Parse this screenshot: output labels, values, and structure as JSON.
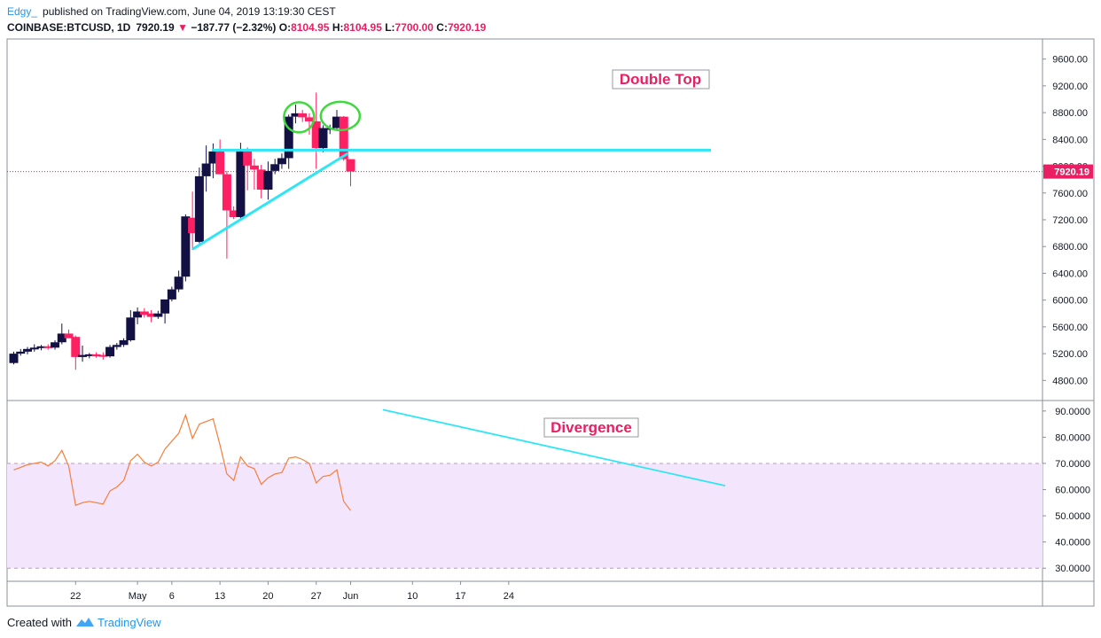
{
  "header": {
    "author": "Edgy_",
    "published_text": "published on TradingView.com, June 04, 2019 13:19:30 CEST",
    "symbol": "COINBASE:BTCUSD, 1D",
    "last": "7920.19",
    "arrow": "▼",
    "change": "−187.77 (−2.32%)",
    "open_label": "O:",
    "open": "8104.95",
    "high_label": "H:",
    "high": "8104.95",
    "low_label": "L:",
    "low": "7700.00",
    "close_label": "C:",
    "close": "7920.19"
  },
  "footer": {
    "created_with": "Created with",
    "brand": "TradingView"
  },
  "colors": {
    "up": "#131144",
    "down": "#ff1f63",
    "trend": "#2ee6f5",
    "rsi": "#f57f3c",
    "rsi_band": "#f3e5fc",
    "circle": "#3fd93f",
    "annotation": "#e91e63",
    "last_price": "#e91e63"
  },
  "chart_data": [
    {
      "type": "candlestick",
      "symbol": "COINBASE:BTCUSD",
      "timeframe": "1D",
      "ylim": [
        4500,
        9900
      ],
      "y_ticks": [
        "9600.00",
        "9200.00",
        "8800.00",
        "8400.00",
        "8000.00",
        "7600.00",
        "7200.00",
        "6800.00",
        "6400.00",
        "6000.00",
        "5600.00",
        "5200.00",
        "4800.00"
      ],
      "x_ticks": [
        {
          "label": "22",
          "date": "2019-04-22"
        },
        {
          "label": "May",
          "date": "2019-05-01"
        },
        {
          "label": "6",
          "date": "2019-05-06"
        },
        {
          "label": "13",
          "date": "2019-05-13"
        },
        {
          "label": "20",
          "date": "2019-05-20"
        },
        {
          "label": "27",
          "date": "2019-05-27"
        },
        {
          "label": "Jun",
          "date": "2019-06-01"
        },
        {
          "label": "10",
          "date": "2019-06-10"
        },
        {
          "label": "17",
          "date": "2019-06-17"
        },
        {
          "label": "24",
          "date": "2019-06-24"
        }
      ],
      "last_price": "7920.19",
      "candles": [
        {
          "date": "2019-04-13",
          "o": 5060,
          "h": 5230,
          "l": 5040,
          "c": 5200
        },
        {
          "date": "2019-04-14",
          "o": 5200,
          "h": 5270,
          "l": 5170,
          "c": 5230
        },
        {
          "date": "2019-04-15",
          "o": 5230,
          "h": 5300,
          "l": 5190,
          "c": 5270
        },
        {
          "date": "2019-04-16",
          "o": 5270,
          "h": 5340,
          "l": 5230,
          "c": 5290
        },
        {
          "date": "2019-04-17",
          "o": 5290,
          "h": 5330,
          "l": 5250,
          "c": 5310
        },
        {
          "date": "2019-04-18",
          "o": 5310,
          "h": 5340,
          "l": 5260,
          "c": 5290
        },
        {
          "date": "2019-04-19",
          "o": 5290,
          "h": 5400,
          "l": 5260,
          "c": 5370
        },
        {
          "date": "2019-04-20",
          "o": 5370,
          "h": 5650,
          "l": 5340,
          "c": 5500
        },
        {
          "date": "2019-04-21",
          "o": 5500,
          "h": 5560,
          "l": 5440,
          "c": 5430
        },
        {
          "date": "2019-04-22",
          "o": 5450,
          "h": 5470,
          "l": 4960,
          "c": 5150
        },
        {
          "date": "2019-04-23",
          "o": 5150,
          "h": 5320,
          "l": 5080,
          "c": 5180
        },
        {
          "date": "2019-04-24",
          "o": 5180,
          "h": 5210,
          "l": 5130,
          "c": 5190
        },
        {
          "date": "2019-04-25",
          "o": 5190,
          "h": 5220,
          "l": 5140,
          "c": 5160
        },
        {
          "date": "2019-04-26",
          "o": 5180,
          "h": 5220,
          "l": 5110,
          "c": 5160
        },
        {
          "date": "2019-04-27",
          "o": 5160,
          "h": 5330,
          "l": 5140,
          "c": 5300
        },
        {
          "date": "2019-04-28",
          "o": 5300,
          "h": 5360,
          "l": 5260,
          "c": 5330
        },
        {
          "date": "2019-04-29",
          "o": 5330,
          "h": 5430,
          "l": 5300,
          "c": 5400
        },
        {
          "date": "2019-04-30",
          "o": 5400,
          "h": 5850,
          "l": 5380,
          "c": 5740
        },
        {
          "date": "2019-05-01",
          "o": 5740,
          "h": 5890,
          "l": 5640,
          "c": 5830
        },
        {
          "date": "2019-05-02",
          "o": 5830,
          "h": 5880,
          "l": 5740,
          "c": 5780
        },
        {
          "date": "2019-05-03",
          "o": 5800,
          "h": 5850,
          "l": 5670,
          "c": 5750
        },
        {
          "date": "2019-05-04",
          "o": 5750,
          "h": 5840,
          "l": 5720,
          "c": 5800
        },
        {
          "date": "2019-05-05",
          "o": 5800,
          "h": 6000,
          "l": 5650,
          "c": 6010
        },
        {
          "date": "2019-05-06",
          "o": 6010,
          "h": 6200,
          "l": 5980,
          "c": 6160
        },
        {
          "date": "2019-05-07",
          "o": 6160,
          "h": 6440,
          "l": 6120,
          "c": 6350
        },
        {
          "date": "2019-05-08",
          "o": 6350,
          "h": 7280,
          "l": 6280,
          "c": 7250
        },
        {
          "date": "2019-05-09",
          "o": 7230,
          "h": 7620,
          "l": 6750,
          "c": 7000
        },
        {
          "date": "2019-05-10",
          "o": 6870,
          "h": 7980,
          "l": 6850,
          "c": 7850
        },
        {
          "date": "2019-05-11",
          "o": 7850,
          "h": 8310,
          "l": 7620,
          "c": 8040
        },
        {
          "date": "2019-05-12",
          "o": 8040,
          "h": 8340,
          "l": 7820,
          "c": 8220
        },
        {
          "date": "2019-05-13",
          "o": 8220,
          "h": 8400,
          "l": 7880,
          "c": 7880
        },
        {
          "date": "2019-05-14",
          "o": 7880,
          "h": 7930,
          "l": 6620,
          "c": 7340
        },
        {
          "date": "2019-05-15",
          "o": 7340,
          "h": 7400,
          "l": 7210,
          "c": 7240
        },
        {
          "date": "2019-05-16",
          "o": 7240,
          "h": 8350,
          "l": 7220,
          "c": 8220
        },
        {
          "date": "2019-05-17",
          "o": 8220,
          "h": 8280,
          "l": 7640,
          "c": 8010
        },
        {
          "date": "2019-05-18",
          "o": 8010,
          "h": 8110,
          "l": 7650,
          "c": 7950
        },
        {
          "date": "2019-05-19",
          "o": 7950,
          "h": 8020,
          "l": 7520,
          "c": 7650
        },
        {
          "date": "2019-05-20",
          "o": 7650,
          "h": 8070,
          "l": 7500,
          "c": 7930
        },
        {
          "date": "2019-05-21",
          "o": 7930,
          "h": 8110,
          "l": 7880,
          "c": 8030
        },
        {
          "date": "2019-05-22",
          "o": 8030,
          "h": 8190,
          "l": 7960,
          "c": 8120
        },
        {
          "date": "2019-05-23",
          "o": 8120,
          "h": 8770,
          "l": 7960,
          "c": 8740
        },
        {
          "date": "2019-05-24",
          "o": 8740,
          "h": 8920,
          "l": 8640,
          "c": 8790
        },
        {
          "date": "2019-05-25",
          "o": 8790,
          "h": 8840,
          "l": 8660,
          "c": 8730
        },
        {
          "date": "2019-05-26",
          "o": 8730,
          "h": 8790,
          "l": 8470,
          "c": 8670
        },
        {
          "date": "2019-05-27",
          "o": 8670,
          "h": 9100,
          "l": 7960,
          "c": 8270
        },
        {
          "date": "2019-05-28",
          "o": 8270,
          "h": 8610,
          "l": 8210,
          "c": 8570
        },
        {
          "date": "2019-05-29",
          "o": 8560,
          "h": 8620,
          "l": 8480,
          "c": 8570
        },
        {
          "date": "2019-05-30",
          "o": 8570,
          "h": 8840,
          "l": 8540,
          "c": 8740
        },
        {
          "date": "2019-05-31",
          "o": 8740,
          "h": 8750,
          "l": 8080,
          "c": 8105
        },
        {
          "date": "2019-06-01",
          "o": 8105,
          "h": 8105,
          "l": 7700,
          "c": 7920
        }
      ]
    },
    {
      "type": "line",
      "indicator": "RSI",
      "ylim": [
        25,
        94
      ],
      "y_ticks": [
        "90.0000",
        "80.0000",
        "70.0000",
        "60.0000",
        "50.0000",
        "40.0000",
        "30.0000"
      ],
      "band": [
        30,
        70
      ],
      "values": [
        67.5,
        68.5,
        69.5,
        70,
        70.5,
        69,
        71,
        75,
        69,
        54,
        55,
        55.5,
        55,
        54.5,
        59.5,
        61,
        63.5,
        71,
        73.5,
        70.5,
        69,
        70.5,
        75.5,
        78.5,
        81.5,
        88.5,
        79.5,
        85,
        86,
        87,
        77,
        66,
        63.5,
        72.5,
        69,
        68,
        62,
        64.5,
        66,
        66.5,
        72,
        72.5,
        71.5,
        70,
        62.5,
        65,
        65.5,
        67.5,
        55.5,
        52
      ]
    }
  ],
  "annotations": {
    "double_top": "Double Top",
    "divergence": "Divergence"
  }
}
